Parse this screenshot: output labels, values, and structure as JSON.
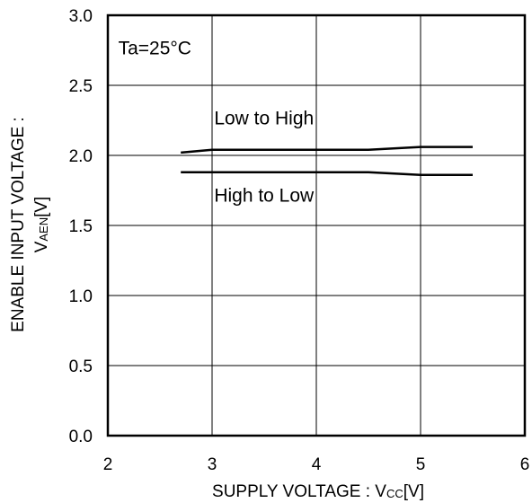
{
  "chart_data": {
    "type": "line",
    "title": "",
    "xlabel": "SUPPLY VOLTAGE : V",
    "xlabel_sub": "CC",
    "xlabel_unit": "[V]",
    "ylabel_line1": "ENABLE INPUT VOLTAGE :",
    "ylabel_line2": "V",
    "ylabel_sub": "AEN",
    "ylabel_unit": "[V]",
    "xlim": [
      2,
      6
    ],
    "ylim": [
      0,
      3
    ],
    "x_ticks": [
      2,
      3,
      4,
      5,
      6
    ],
    "x_tick_labels": [
      "2",
      "3",
      "4",
      "5",
      "6"
    ],
    "y_ticks": [
      0,
      0.5,
      1,
      1.5,
      2,
      2.5,
      3
    ],
    "y_tick_labels": [
      "0.0",
      "0.5",
      "1.0",
      "1.5",
      "2.0",
      "2.5",
      "3.0"
    ],
    "grid": true,
    "annotations": [
      {
        "text": "Ta=25°C",
        "x": 2.1,
        "y": 2.72
      },
      {
        "text": "Low to High",
        "x": 3.02,
        "y": 2.22
      },
      {
        "text": "High to Low",
        "x": 3.02,
        "y": 1.67
      }
    ],
    "series": [
      {
        "x": [
          2.7,
          3.0,
          3.5,
          4.0,
          4.5,
          5.0,
          5.5
        ],
        "values": [
          2.02,
          2.04,
          2.04,
          2.04,
          2.04,
          2.06,
          2.06
        ],
        "color": "#000000"
      },
      {
        "x": [
          2.7,
          3.0,
          3.5,
          4.0,
          4.5,
          5.0,
          5.5
        ],
        "values": [
          1.88,
          1.88,
          1.88,
          1.88,
          1.88,
          1.86,
          1.86
        ],
        "color": "#000000"
      }
    ]
  }
}
